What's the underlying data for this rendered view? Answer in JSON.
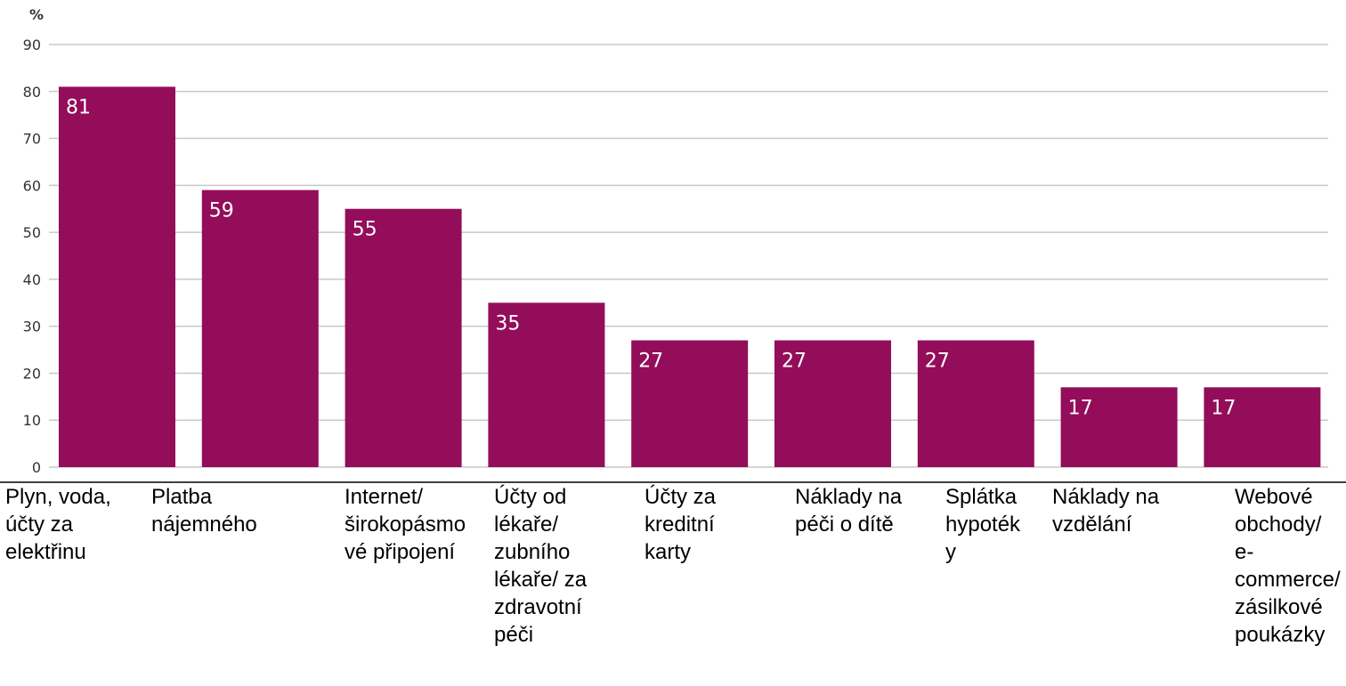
{
  "chart_data": {
    "type": "bar",
    "ylabel": "%",
    "ylim": [
      0,
      90
    ],
    "yticks": [
      0,
      10,
      20,
      30,
      40,
      50,
      60,
      70,
      80,
      90
    ],
    "grid": true,
    "bar_color": "#930d5a",
    "categories": [
      "Plyn, voda, účty za elektřinu",
      "Platba nájemného",
      "Internet/ širokopásmové připojení",
      "Účty od lékaře/ zubního lékaře/ za zdravotní péči",
      "Účty za kreditní karty",
      "Náklady na péči o dítě",
      "Splátka hypotéky",
      "Náklady na vzdělání",
      "Webové obchody/ e-commerce/ zásilkové poukázky"
    ],
    "values": [
      81,
      59,
      55,
      35,
      27,
      27,
      27,
      17,
      17
    ]
  }
}
